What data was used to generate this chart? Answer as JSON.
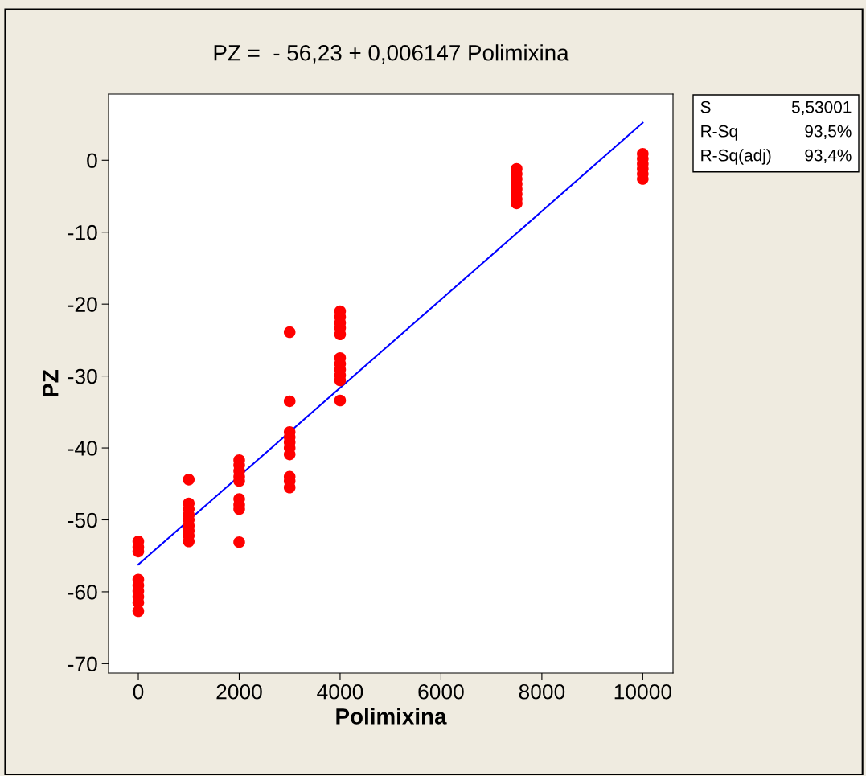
{
  "chart_data": {
    "type": "scatter",
    "title": "PZ =  - 56,23 + 0,006147 Polimixina",
    "xlabel": "Polimixina",
    "ylabel": "PZ",
    "annotations": [
      "S",
      "5,53001",
      "R-Sq",
      "93,5%",
      "R-Sq(adj)",
      "93,4%"
    ],
    "series": [
      {
        "color": "#ff0000",
        "marker": "circle",
        "x": [
          0,
          0,
          0,
          0,
          0,
          0,
          0,
          0,
          0,
          1000,
          1000,
          1000,
          1000,
          1000,
          1000,
          1000,
          1000,
          1000,
          2000,
          2000,
          2000,
          2000,
          2000,
          2000,
          2000,
          2000,
          2000,
          3000,
          3000,
          3000,
          3000,
          3000,
          3000,
          3000,
          3000,
          3000,
          3000,
          4000,
          4000,
          4000,
          4000,
          4000,
          4000,
          4000,
          4000,
          4000,
          4000,
          4000,
          7500,
          7500,
          7500,
          7500,
          7500,
          7500,
          7500,
          7500,
          10000,
          10000,
          10000,
          10000,
          10000,
          10000
        ],
        "values": [
          -53.0,
          -53.8,
          -54.4,
          -58.3,
          -59.1,
          -59.9,
          -60.7,
          -61.5,
          -62.7,
          -44.4,
          -47.7,
          -48.5,
          -49.3,
          -50.0,
          -50.8,
          -51.5,
          -52.2,
          -53.0,
          -41.7,
          -42.4,
          -43.2,
          -44.0,
          -44.6,
          -47.1,
          -47.9,
          -48.5,
          -53.1,
          -23.9,
          -33.5,
          -37.8,
          -38.5,
          -39.2,
          -40.0,
          -40.9,
          -44.0,
          -44.6,
          -45.5,
          -21.0,
          -21.8,
          -22.6,
          -23.3,
          -24.2,
          -27.5,
          -28.3,
          -29.1,
          -29.9,
          -30.6,
          -33.4,
          -1.2,
          -1.9,
          -2.6,
          -3.3,
          -4.0,
          -4.7,
          -5.4,
          -6.0,
          0.9,
          0.2,
          -0.5,
          -1.2,
          -1.9,
          -2.6
        ]
      },
      {
        "type": "line",
        "color": "#0000ff",
        "line_style": "solid",
        "x": [
          0,
          10000
        ],
        "values": [
          -56.2,
          5.2
        ]
      }
    ],
    "xlim": [
      -590,
      10600
    ],
    "ylim": [
      -71.3,
      9.2
    ],
    "xticks": [
      0,
      2000,
      4000,
      6000,
      8000,
      10000
    ],
    "yticks": [
      -70,
      -60,
      -50,
      -40,
      -30,
      -20,
      -10,
      0
    ],
    "grid": false,
    "legend": false
  }
}
